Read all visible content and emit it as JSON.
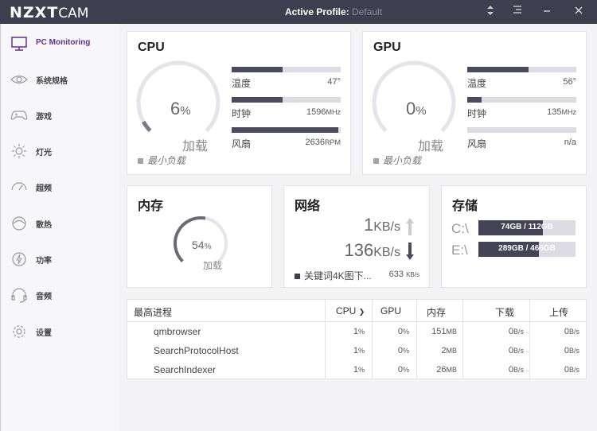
{
  "app": {
    "logo": "NZXT",
    "logo_suffix": "CAM"
  },
  "titlebar": {
    "profile_label": "Active Profile:",
    "profile_value": "Default"
  },
  "sidebar": {
    "items": [
      {
        "label": "PC Monitoring",
        "icon": "monitor-icon",
        "active": true
      },
      {
        "label": "系统规格",
        "icon": "eye-icon"
      },
      {
        "label": "游戏",
        "icon": "gamepad-icon"
      },
      {
        "label": "灯光",
        "icon": "sun-icon"
      },
      {
        "label": "超频",
        "icon": "speedometer-icon"
      },
      {
        "label": "散热",
        "icon": "fan-icon"
      },
      {
        "label": "功率",
        "icon": "power-icon"
      },
      {
        "label": "音频",
        "icon": "headset-icon"
      },
      {
        "label": "设置",
        "icon": "gear-icon"
      }
    ]
  },
  "cpu": {
    "title": "CPU",
    "load_pct": 6,
    "pct_unit": "%",
    "load_word": "加载",
    "min_load": "最小负载",
    "rows": [
      {
        "label": "温度",
        "value": "47°",
        "fill": 0.47
      },
      {
        "label": "时钟",
        "value": "1596",
        "unit": "MHz",
        "fill": 0.47
      },
      {
        "label": "风扇",
        "value": "2636",
        "unit": "RPM",
        "fill": 0.98
      }
    ]
  },
  "gpu": {
    "title": "GPU",
    "load_pct": 0,
    "pct_unit": "%",
    "load_word": "加载",
    "min_load": "最小负载",
    "rows": [
      {
        "label": "温度",
        "value": "56°",
        "fill": 0.56
      },
      {
        "label": "时钟",
        "value": "135",
        "unit": "MHz",
        "fill": 0.13
      },
      {
        "label": "风扇",
        "value": "n/a",
        "fill": 0
      }
    ]
  },
  "memory": {
    "title": "内存",
    "load_pct": 54,
    "pct_unit": "%",
    "load_word": "加载"
  },
  "network": {
    "title": "网络",
    "up_value": "1",
    "up_unit": "KB/s",
    "down_value": "136",
    "down_unit": "KB/s",
    "top_process": "关键词4K图下...",
    "top_process_rate": "633",
    "top_process_unit": "KB/s"
  },
  "storage": {
    "title": "存储",
    "drives": [
      {
        "label": "C:\\",
        "text": "74GB / 112GB",
        "fill": 0.66
      },
      {
        "label": "E:\\",
        "text": "289GB / 466GB",
        "fill": 0.62
      }
    ]
  },
  "processes": {
    "headers": {
      "name": "最高进程",
      "cpu": "CPU",
      "gpu": "GPU",
      "mem": "内存",
      "down": "下载",
      "up": "上传"
    },
    "rows": [
      {
        "name": "qmbrowser",
        "cpu": "1",
        "gpu": "0",
        "mem": "151",
        "down": "0",
        "up": "0"
      },
      {
        "name": "SearchProtocolHost",
        "cpu": "1",
        "gpu": "0",
        "mem": "2",
        "down": "0",
        "up": "0"
      },
      {
        "name": "SearchIndexer",
        "cpu": "1",
        "gpu": "0",
        "mem": "26",
        "down": "0",
        "up": "0"
      }
    ],
    "units": {
      "pct": "%",
      "mem": "MB",
      "rate": "B/s"
    }
  },
  "colors": {
    "titlebar": "#3e3e4e",
    "accent": "#6a2c91",
    "bar": "#4b4b5d",
    "track": "#dcdce2"
  }
}
